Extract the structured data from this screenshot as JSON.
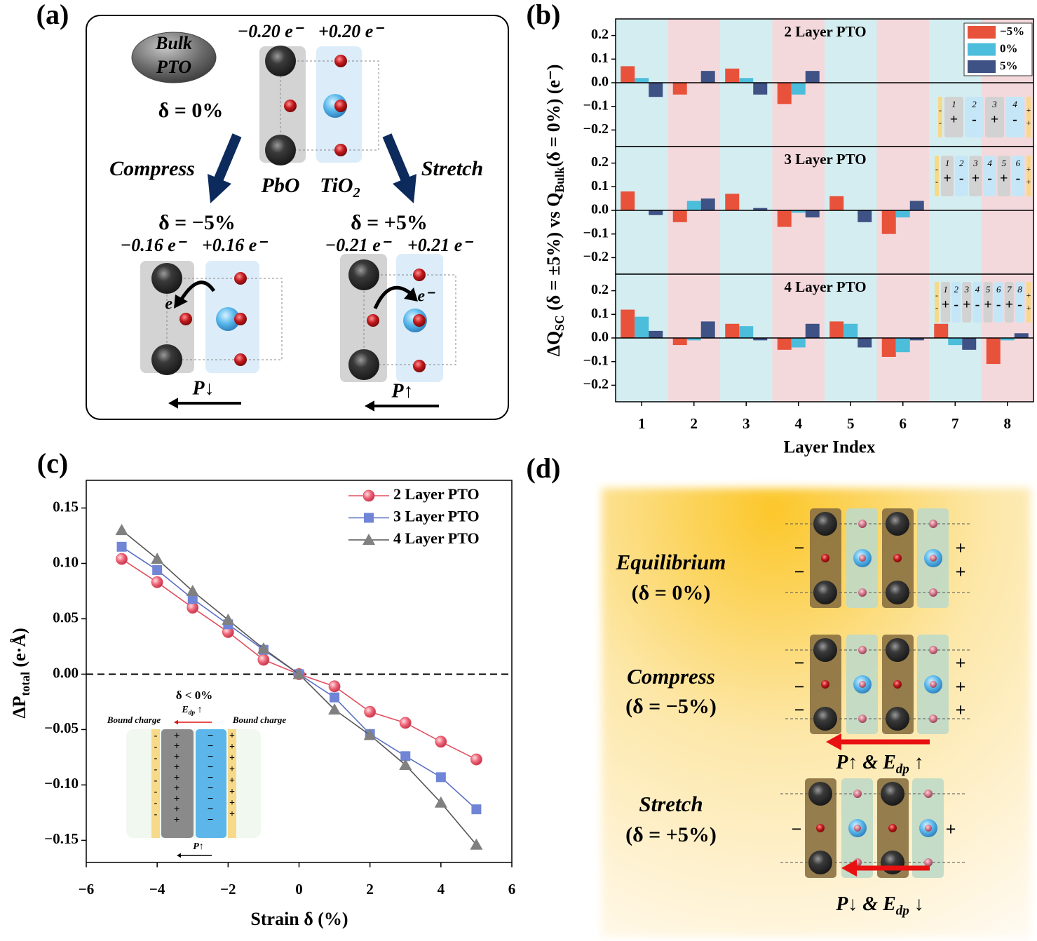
{
  "panel_labels": [
    "(a)",
    "(b)",
    "(c)",
    "(d)"
  ],
  "panel_a": {
    "bulk": [
      "Bulk",
      "PTO"
    ],
    "charges_bulk": [
      "−0.20 e⁻",
      "+0.20 e⁻"
    ],
    "delta_bulk": "δ = 0%",
    "compress": "Compress",
    "stretch": "Stretch",
    "pbo": "PbO",
    "tio2_parts": [
      {
        "text": "TiO"
      },
      {
        "text": "2",
        "sub": true
      }
    ],
    "delta_compress": "δ = −5%",
    "delta_stretch": "δ = +5%",
    "charges_compress": [
      "−0.16 e⁻",
      "+0.16 e⁻"
    ],
    "charges_stretch": [
      "−0.21 e⁻",
      "+0.21 e⁻"
    ],
    "electron": "e⁻",
    "p_compress": "P↓",
    "p_stretch": "P↑"
  },
  "chart_data": [
    {
      "type": "bar",
      "categories": [
        1,
        2,
        3,
        4,
        5,
        6,
        7,
        8
      ],
      "xlabel": "Layer Index",
      "ylabel_parts": [
        {
          "text": "ΔQ"
        },
        {
          "text": "SC",
          "sub": true
        },
        {
          "text": " (δ = ±5%) vs "
        },
        {
          "text": "Q"
        },
        {
          "text": "Bulk",
          "sub": true
        },
        {
          "text": "(δ = 0%) (e⁻)"
        }
      ],
      "ylim": [
        -0.27,
        0.27
      ],
      "yticks": [
        {
          "value": -0.2,
          "label": "−0.2"
        },
        {
          "value": -0.1,
          "label": "−0.1"
        },
        {
          "value": 0,
          "label": "0.0"
        },
        0.1,
        0.2
      ],
      "band_colors": [
        "#d4edf1",
        "#f4d9dc"
      ],
      "legend": "upper right",
      "series": [
        {
          "name": "−5%",
          "color": "#e8523b"
        },
        {
          "name": "0%",
          "color": "#4cbdda"
        },
        {
          "name": "5%",
          "color": "#3e5285"
        }
      ],
      "subplots": [
        {
          "title": "2 Layer PTO",
          "values": [
            [
              0.07,
              -0.05,
              0.06,
              -0.09,
              null,
              null,
              null,
              null
            ],
            [
              0.02,
              0,
              0.02,
              -0.05,
              null,
              null,
              null,
              null
            ],
            [
              -0.06,
              0.05,
              -0.05,
              0.05,
              null,
              null,
              null,
              null
            ]
          ],
          "inset": {
            "numbers": [
              1,
              2,
              3,
              4
            ],
            "signs": [
              "+",
              "-",
              "+",
              "-"
            ],
            "edges": [
              "-",
              "+"
            ]
          }
        },
        {
          "title": "3 Layer PTO",
          "values": [
            [
              0.08,
              -0.05,
              0.07,
              -0.07,
              0.06,
              -0.1,
              null,
              null
            ],
            [
              0,
              0.04,
              0,
              -0.01,
              0,
              -0.03,
              null,
              null
            ],
            [
              -0.02,
              0.05,
              0.01,
              -0.03,
              -0.05,
              0.04,
              null,
              null
            ]
          ],
          "inset": {
            "numbers": [
              1,
              2,
              3,
              4,
              5,
              6
            ],
            "signs": [
              "+",
              "-",
              "+",
              "-",
              "+",
              "-"
            ],
            "edges": [
              "-",
              "+"
            ]
          }
        },
        {
          "title": "4 Layer PTO",
          "values": [
            [
              0.12,
              -0.03,
              0.06,
              -0.05,
              0.07,
              -0.08,
              0.06,
              -0.11
            ],
            [
              0.09,
              -0.01,
              0.05,
              -0.04,
              0.06,
              -0.06,
              -0.03,
              -0.01
            ],
            [
              0.03,
              0.07,
              -0.01,
              0.06,
              -0.04,
              -0.01,
              -0.05,
              0.02
            ]
          ],
          "inset": {
            "numbers": [
              1,
              2,
              3,
              4,
              5,
              6,
              7,
              8
            ],
            "signs": [
              "+",
              "-",
              "+",
              "-",
              "+",
              "-",
              "+",
              "-"
            ],
            "edges": [
              "-",
              "+"
            ]
          }
        }
      ]
    },
    {
      "type": "line",
      "x": [
        -5,
        -4,
        -3,
        -2,
        -1,
        0,
        1,
        2,
        3,
        4,
        5
      ],
      "xlim": [
        -6,
        6
      ],
      "xticks": [
        {
          "value": -6,
          "label": "−6"
        },
        {
          "value": -4,
          "label": "−4"
        },
        {
          "value": -2,
          "label": "−2"
        },
        0,
        2,
        4,
        6
      ],
      "ylim": [
        -0.17,
        0.175
      ],
      "yticks": [
        {
          "value": -0.15,
          "label": "−0.15"
        },
        {
          "value": -0.1,
          "label": "−0.10"
        },
        {
          "value": -0.05,
          "label": "−0.05"
        },
        {
          "value": 0,
          "label": "0.00"
        },
        0.05,
        {
          "value": 0.1,
          "label": "0.10"
        },
        0.15
      ],
      "xlabel": "Strain δ (%)",
      "ylabel_parts": [
        {
          "text": "ΔP"
        },
        {
          "text": "total",
          "sub": true
        },
        {
          "text": " (e·Å)"
        }
      ],
      "reference_line": {
        "y": 0,
        "style": "dashed"
      },
      "legend": "upper right",
      "series": [
        {
          "name": "2 Layer PTO",
          "color": "#e05060",
          "marker": "circle",
          "marker_color": "#f0687a",
          "values": [
            0.104,
            0.083,
            0.06,
            0.038,
            0.013,
            0,
            -0.011,
            -0.034,
            -0.044,
            -0.061,
            -0.077
          ]
        },
        {
          "name": "3 Layer PTO",
          "color": "#5a70c0",
          "marker": "square",
          "marker_color": "#7085d6",
          "values": [
            0.115,
            0.094,
            0.068,
            0.045,
            0.022,
            0,
            -0.021,
            -0.054,
            -0.074,
            -0.093,
            -0.122
          ]
        },
        {
          "name": "4 Layer PTO",
          "color": "#555555",
          "marker": "triangle",
          "marker_color": "#808080",
          "values": [
            0.13,
            0.104,
            0.075,
            0.049,
            0.023,
            0,
            -0.032,
            -0.055,
            -0.082,
            -0.116,
            -0.154
          ]
        }
      ],
      "inset": {
        "title": "δ < 0%",
        "bound_charge": "Bound charge",
        "field_parts": [
          {
            "text": "E"
          },
          {
            "text": "dp",
            "sub": true
          },
          {
            "text": " ↑"
          }
        ],
        "p_label": "P↑",
        "plus": "+",
        "minus": "−",
        "dash": "-"
      }
    }
  ],
  "panel_d": {
    "states": [
      {
        "name": "Equilibrium",
        "delta": "(δ = 0%)"
      },
      {
        "name": "Compress",
        "delta": "(δ = −5%)"
      },
      {
        "name": "Stretch",
        "delta": "(δ = +5%)"
      }
    ],
    "compress_parts": [
      {
        "text": "P↑ & E"
      },
      {
        "text": "dp",
        "sub": true
      },
      {
        "text": " ↑"
      }
    ],
    "stretch_parts": [
      {
        "text": "P↓ & E"
      },
      {
        "text": "dp",
        "sub": true
      },
      {
        "text": " ↓"
      }
    ],
    "minus": "−",
    "plus": "+"
  }
}
